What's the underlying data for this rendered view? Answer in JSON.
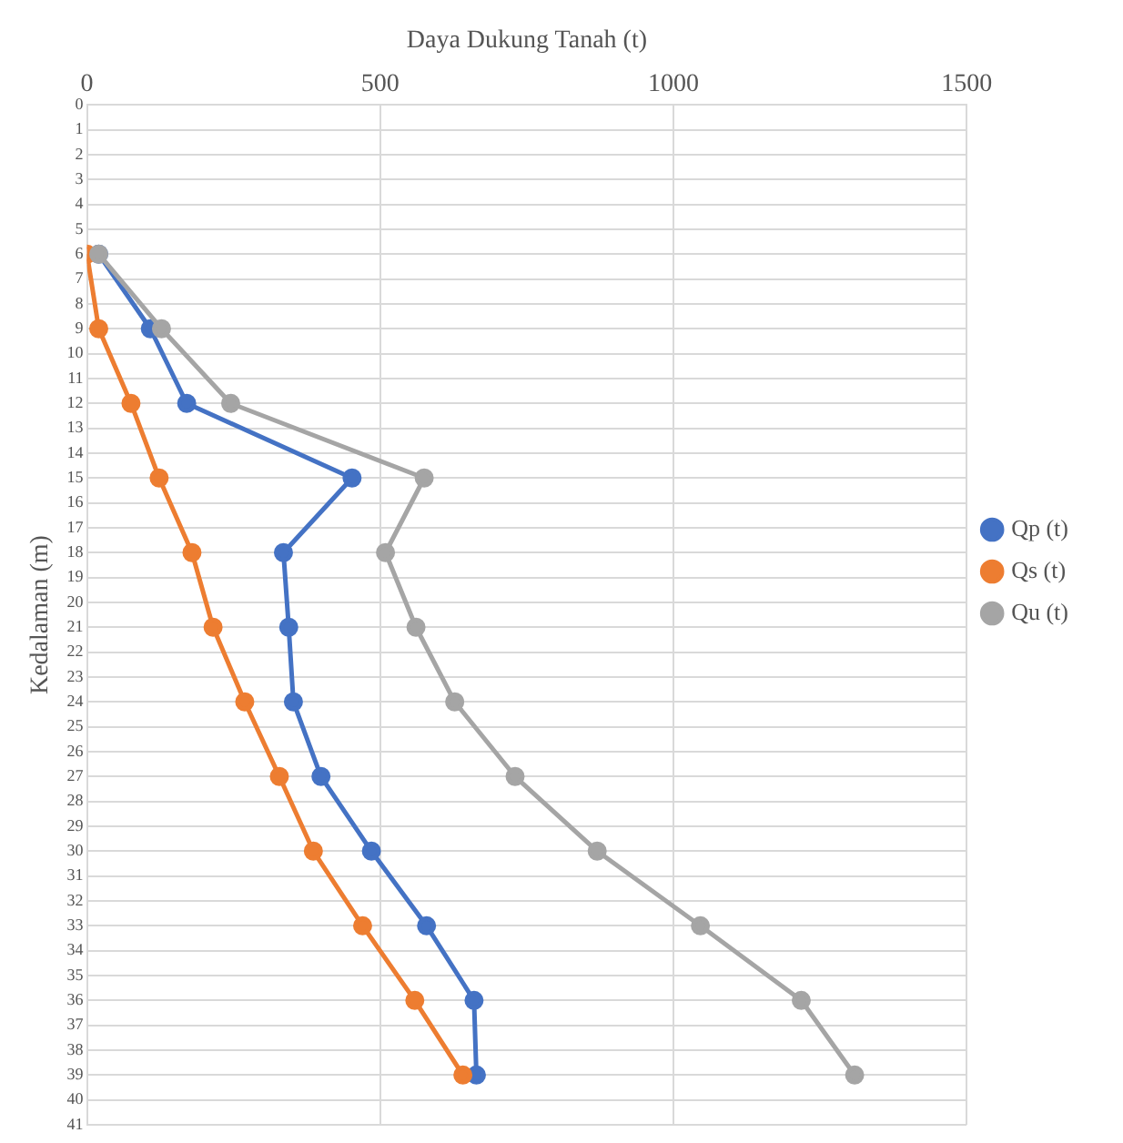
{
  "chart_data": {
    "type": "line",
    "xlabel": "Daya Dukung Tanah (t)",
    "ylabel": "Kedalaman (m)",
    "xlim": [
      0,
      1500
    ],
    "xticks": [
      0,
      500,
      1000,
      1500
    ],
    "ylim": [
      41,
      0
    ],
    "yticks": [
      0,
      1,
      2,
      3,
      4,
      5,
      6,
      7,
      8,
      9,
      10,
      11,
      12,
      13,
      14,
      15,
      16,
      17,
      18,
      19,
      20,
      21,
      22,
      23,
      24,
      25,
      26,
      27,
      28,
      29,
      30,
      31,
      32,
      33,
      34,
      35,
      36,
      37,
      38,
      39,
      40,
      41
    ],
    "grid": true,
    "legend": "right",
    "marker": "circle",
    "series": [
      {
        "name": "Qp (t)",
        "color": "#4472c4",
        "x": [
          20,
          108,
          170,
          452,
          335,
          344,
          352,
          399,
          485,
          579,
          660,
          664
        ],
        "values": [
          6,
          9,
          12,
          15,
          18,
          21,
          24,
          27,
          30,
          33,
          36,
          39
        ]
      },
      {
        "name": "Qs (t)",
        "color": "#ed7d31",
        "x": [
          0,
          20,
          75,
          123,
          179,
          215,
          269,
          328,
          386,
          470,
          559,
          641
        ],
        "values": [
          6,
          9,
          12,
          15,
          18,
          21,
          24,
          27,
          30,
          33,
          36,
          39
        ]
      },
      {
        "name": "Qu (t)",
        "color": "#a5a5a5",
        "x": [
          20,
          127,
          245,
          575,
          509,
          561,
          627,
          730,
          870,
          1046,
          1218,
          1309
        ],
        "values": [
          6,
          9,
          12,
          15,
          18,
          21,
          24,
          27,
          30,
          33,
          36,
          39
        ]
      }
    ]
  }
}
